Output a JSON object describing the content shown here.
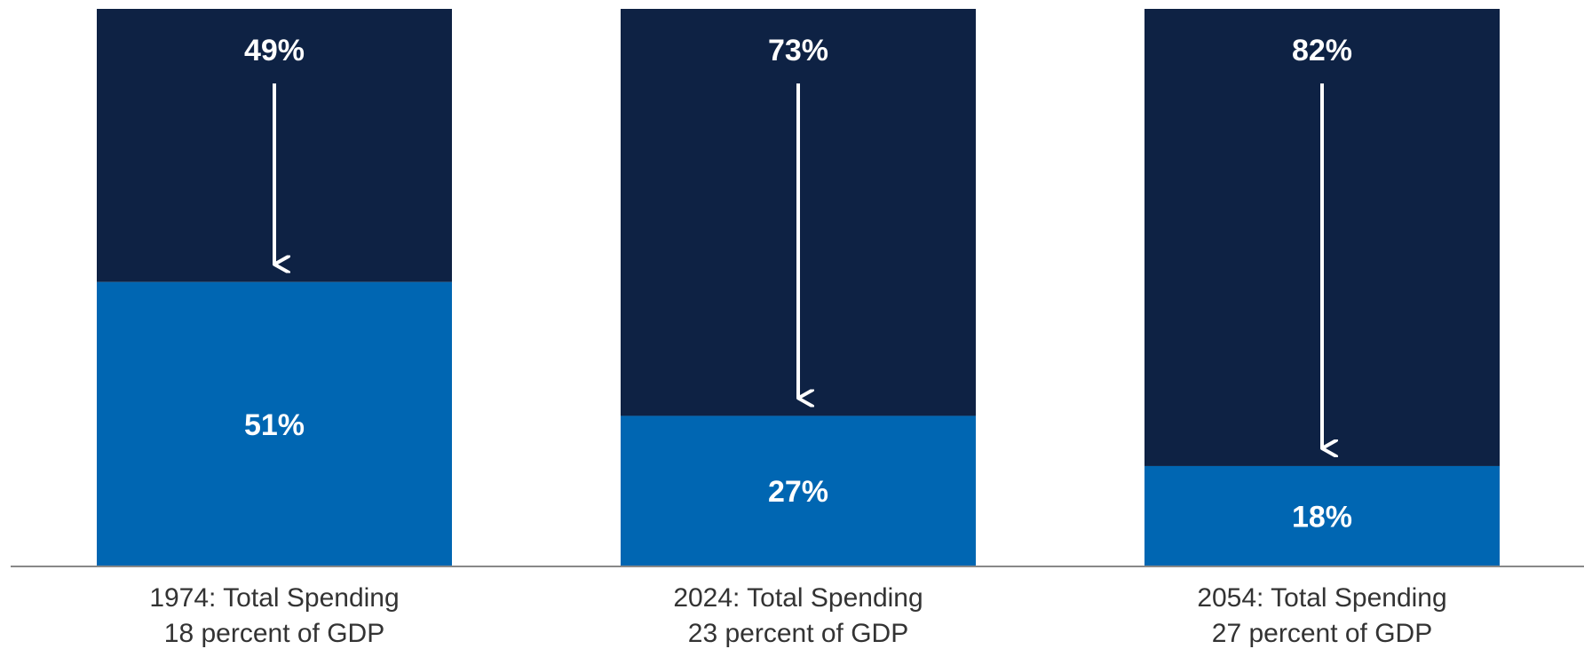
{
  "chart_data": {
    "type": "bar",
    "stacked": true,
    "percent_stacked": true,
    "categories": [
      [
        "1974: Total Spending",
        "18 percent of GDP"
      ],
      [
        "2024: Total Spending",
        "23 percent of GDP"
      ],
      [
        "2054: Total Spending",
        "27 percent of GDP"
      ]
    ],
    "series": [
      {
        "values": [
          51,
          27,
          18
        ],
        "labels": [
          "51%",
          "27%",
          "18%"
        ],
        "color": "#0066b2"
      },
      {
        "values": [
          49,
          73,
          82
        ],
        "labels": [
          "49%",
          "73%",
          "82%"
        ],
        "color": "#0e2244"
      }
    ],
    "arrows": "downward arrow in each upper segment",
    "ylim": [
      0,
      100
    ],
    "grid": false,
    "legend": "none"
  }
}
